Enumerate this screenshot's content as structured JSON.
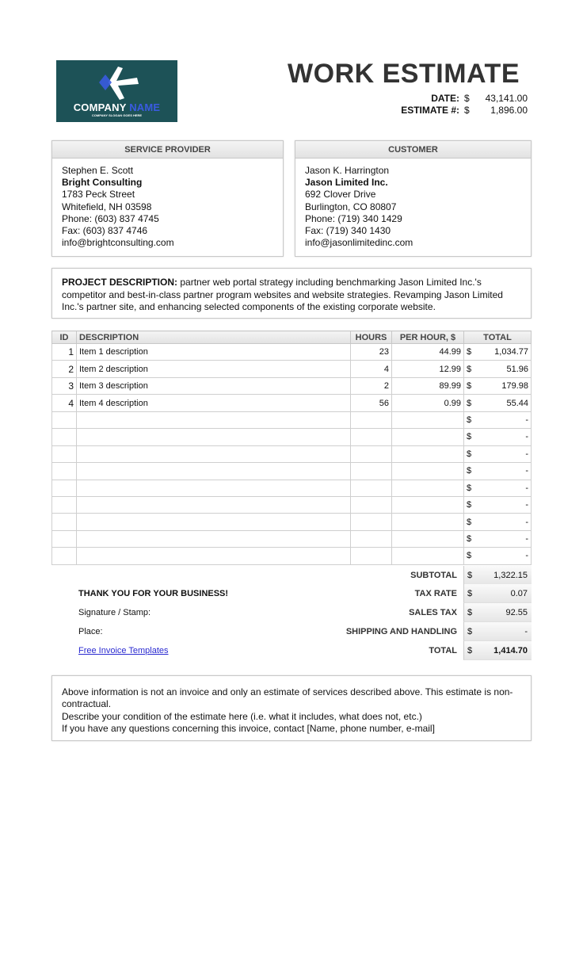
{
  "logo": {
    "company": "COMPANY",
    "name": "NAME",
    "slogan": "COMPANY SLOGAN GOES HERE",
    "color": "#1d5257"
  },
  "title": "WORK ESTIMATE",
  "meta": [
    {
      "label": "DATE:",
      "currency": "$",
      "value": "43,141.00"
    },
    {
      "label": "ESTIMATE #:",
      "currency": "$",
      "value": "1,896.00"
    }
  ],
  "provider": {
    "heading": "SERVICE PROVIDER",
    "name": "Stephen E. Scott",
    "company": "Bright Consulting",
    "street": "1783 Peck Street",
    "city": "Whitefield, NH 03598",
    "phone": "Phone:  (603) 837 4745",
    "fax": "Fax: (603) 837 4746",
    "email": "info@brightconsulting.com"
  },
  "customer": {
    "heading": "CUSTOMER",
    "name": "Jason K. Harrington",
    "company": "Jason Limited Inc.",
    "street": "692 Clover Drive",
    "city": "Burlington, CO  80807",
    "phone": "Phone: (719) 340 1429",
    "fax": "Fax: (719) 340 1430",
    "email": "info@jasonlimitedinc.com"
  },
  "project": {
    "label": "PROJECT DESCRIPTION:",
    "text": " partner web portal strategy including benchmarking Jason Limited Inc.'s competitor and best-in-class partner program websites and website strategies. Revamping Jason Limited Inc.'s partner site, and enhancing selected components of the existing corporate website."
  },
  "table": {
    "headers": [
      "ID",
      "DESCRIPTION",
      "HOURS",
      "PER HOUR, $",
      "TOTAL"
    ],
    "rows": [
      {
        "id": "1",
        "desc": "Item 1 description",
        "hours": "23",
        "rate": "44.99",
        "cur": "$",
        "total": "1,034.77"
      },
      {
        "id": "2",
        "desc": "Item 2 description",
        "hours": "4",
        "rate": "12.99",
        "cur": "$",
        "total": "51.96"
      },
      {
        "id": "3",
        "desc": "Item 3 description",
        "hours": "2",
        "rate": "89.99",
        "cur": "$",
        "total": "179.98"
      },
      {
        "id": "4",
        "desc": "Item 4 description",
        "hours": "56",
        "rate": "0.99",
        "cur": "$",
        "total": "55.44"
      },
      {
        "id": "",
        "desc": "",
        "hours": "",
        "rate": "",
        "cur": "$",
        "total": "-"
      },
      {
        "id": "",
        "desc": "",
        "hours": "",
        "rate": "",
        "cur": "$",
        "total": "-"
      },
      {
        "id": "",
        "desc": "",
        "hours": "",
        "rate": "",
        "cur": "$",
        "total": "-"
      },
      {
        "id": "",
        "desc": "",
        "hours": "",
        "rate": "",
        "cur": "$",
        "total": "-"
      },
      {
        "id": "",
        "desc": "",
        "hours": "",
        "rate": "",
        "cur": "$",
        "total": "-"
      },
      {
        "id": "",
        "desc": "",
        "hours": "",
        "rate": "",
        "cur": "$",
        "total": "-"
      },
      {
        "id": "",
        "desc": "",
        "hours": "",
        "rate": "",
        "cur": "$",
        "total": "-"
      },
      {
        "id": "",
        "desc": "",
        "hours": "",
        "rate": "",
        "cur": "$",
        "total": "-"
      },
      {
        "id": "",
        "desc": "",
        "hours": "",
        "rate": "",
        "cur": "$",
        "total": "-"
      }
    ]
  },
  "summary": [
    {
      "left": "",
      "label": "SUBTOTAL",
      "cur": "$",
      "value": "1,322.15"
    },
    {
      "left": "THANK YOU FOR YOUR BUSINESS!",
      "label": "TAX RATE",
      "cur": "$",
      "value": "0.07"
    },
    {
      "left": "Signature / Stamp:",
      "label": "SALES TAX",
      "cur": "$",
      "value": "92.55"
    },
    {
      "left": "Place:",
      "label": "SHIPPING AND HANDLING",
      "cur": "$",
      "value": "-"
    },
    {
      "left": "Free Invoice Templates",
      "label": "TOTAL",
      "cur": "$",
      "value": "1,414.70"
    }
  ],
  "footer": [
    "Above information is not an invoice and only an estimate of services described above. This estimate is non-contractual.",
    "Describe your condition of the estimate here (i.e. what it includes, what does not, etc.)",
    "If you have any questions concerning this invoice, contact [Name, phone number, e-mail]"
  ]
}
